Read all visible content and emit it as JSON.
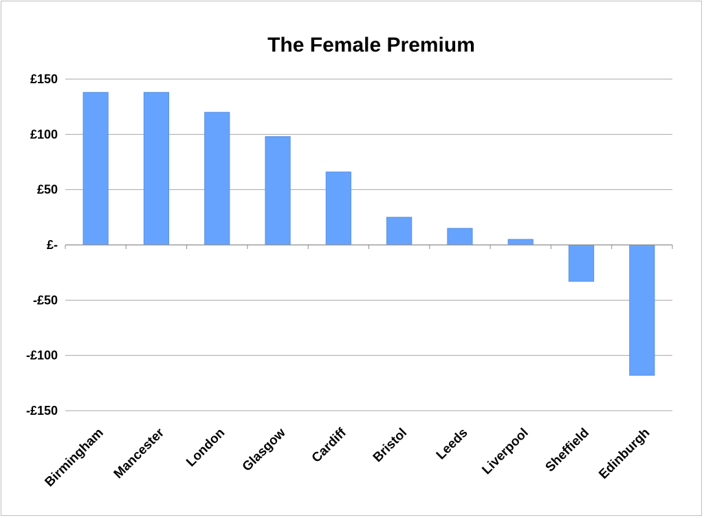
{
  "chart_data": {
    "type": "bar",
    "title": "The Female Premium",
    "xlabel": "",
    "ylabel": "",
    "categories": [
      "Birmingham",
      "Mancester",
      "London",
      "Glasgow",
      "Cardiff",
      "Bristol",
      "Leeds",
      "Liverpool",
      "Sheffield",
      "Edinburgh"
    ],
    "values": [
      138,
      138,
      120,
      98,
      66,
      25,
      15,
      5,
      -33,
      -118
    ],
    "ylim": [
      -150,
      150
    ],
    "yticks": [
      150,
      100,
      50,
      0,
      -50,
      -100,
      -150
    ],
    "ytick_labels": [
      "£150",
      "£100",
      "£50",
      "£-",
      "-£50",
      "-£100",
      "-£150"
    ],
    "grid": true,
    "legend": "none",
    "bar_color": "#66a3ff",
    "bar_edge_color": "#5a8fe0",
    "gridline_color": "#a6a6a6"
  }
}
